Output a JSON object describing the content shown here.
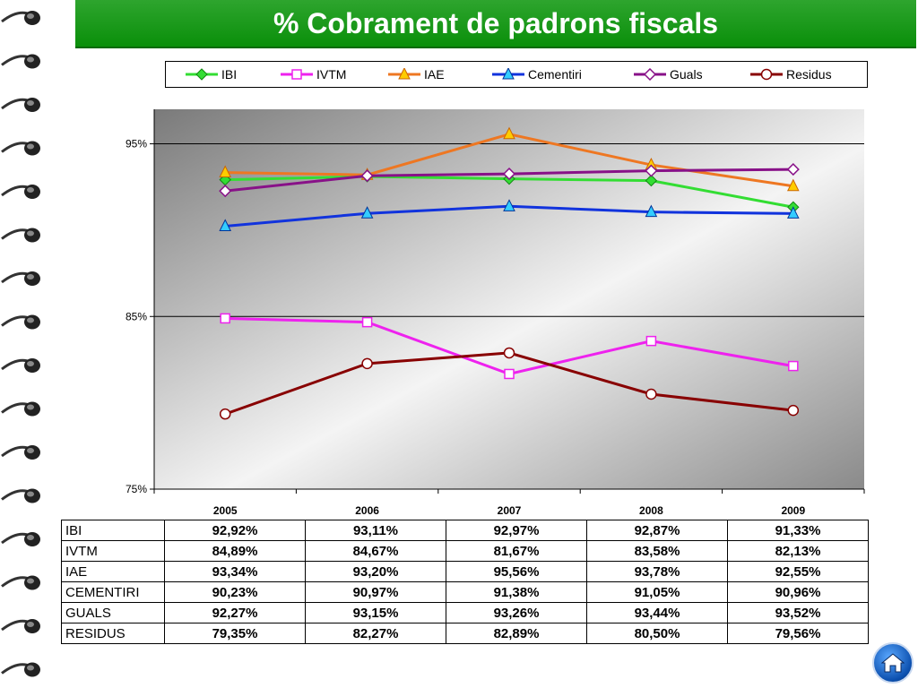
{
  "title": "% Cobrament de padrons fiscals",
  "chart_data": {
    "type": "line",
    "categories": [
      "2005",
      "2006",
      "2007",
      "2008",
      "2009"
    ],
    "ylim": [
      75,
      97
    ],
    "yticks": [
      "95%",
      "85%",
      "75%"
    ],
    "ytick_values": [
      95,
      85,
      75
    ],
    "grid": "horizontal major lines",
    "legend_position": "top",
    "series": [
      {
        "name": "IBI",
        "color": "#33dd33",
        "marker": "diamond-filled",
        "values": [
          92.92,
          93.11,
          92.97,
          92.87,
          91.33
        ]
      },
      {
        "name": "IVTM",
        "color": "#ee22ee",
        "marker": "square",
        "values": [
          84.89,
          84.67,
          81.67,
          83.58,
          82.13
        ]
      },
      {
        "name": "IAE",
        "color": "#ee7722",
        "marker": "triangle-orange",
        "values": [
          93.34,
          93.2,
          95.56,
          93.78,
          92.55
        ]
      },
      {
        "name": "Cementiri",
        "color": "#1133dd",
        "marker": "triangle-cyan",
        "values": [
          90.23,
          90.97,
          91.38,
          91.05,
          90.96
        ]
      },
      {
        "name": "Guals",
        "color": "#881188",
        "marker": "diamond-open",
        "values": [
          92.27,
          93.15,
          93.26,
          93.44,
          93.52
        ]
      },
      {
        "name": "Residus",
        "color": "#880000",
        "marker": "circle",
        "values": [
          79.35,
          82.27,
          82.89,
          80.5,
          79.56
        ]
      }
    ]
  },
  "table": {
    "rows": [
      {
        "label": "IBI",
        "values": [
          "92,92%",
          "93,11%",
          "92,97%",
          "92,87%",
          "91,33%"
        ]
      },
      {
        "label": "IVTM",
        "values": [
          "84,89%",
          "84,67%",
          "81,67%",
          "83,58%",
          "82,13%"
        ]
      },
      {
        "label": "IAE",
        "values": [
          "93,34%",
          "93,20%",
          "95,56%",
          "93,78%",
          "92,55%"
        ]
      },
      {
        "label": "CEMENTIRI",
        "values": [
          "90,23%",
          "90,97%",
          "91,38%",
          "91,05%",
          "90,96%"
        ]
      },
      {
        "label": "GUALS",
        "values": [
          "92,27%",
          "93,15%",
          "93,26%",
          "93,44%",
          "93,52%"
        ]
      },
      {
        "label": "RESIDUS",
        "values": [
          "79,35%",
          "82,27%",
          "82,89%",
          "80,50%",
          "79,56%"
        ]
      }
    ]
  },
  "home_icon": "home-icon"
}
